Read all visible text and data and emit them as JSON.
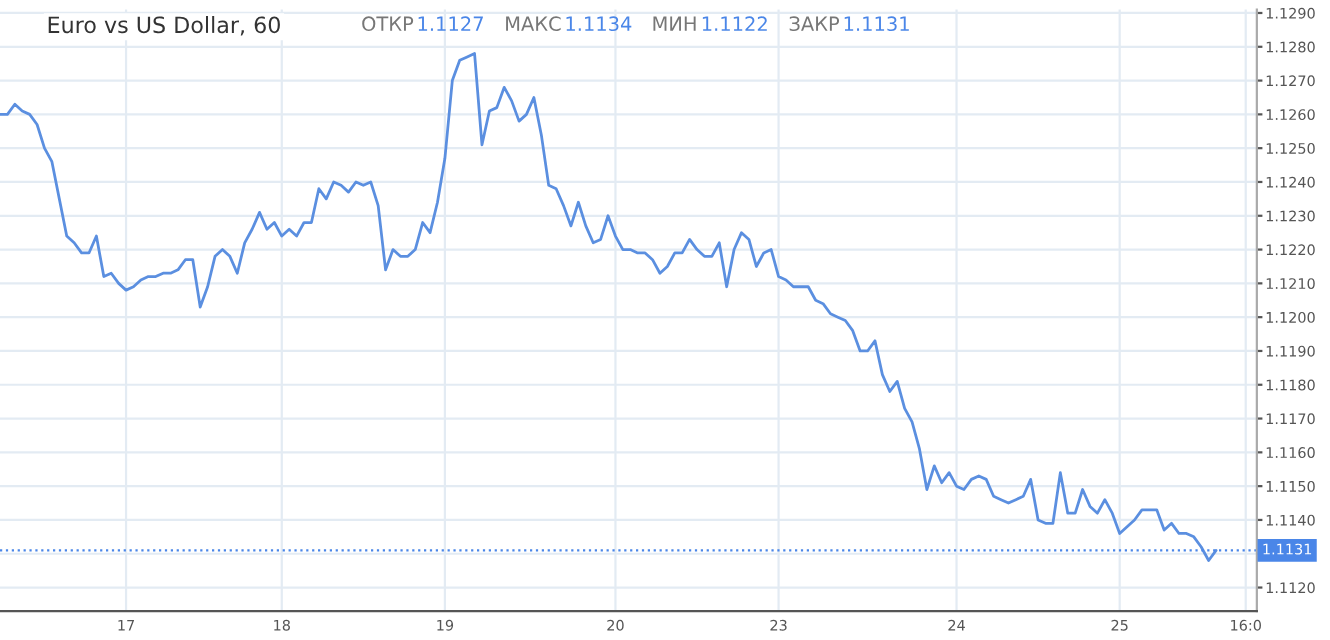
{
  "chart_data": {
    "type": "line",
    "title": "Euro vs US Dollar, 60",
    "annotations": [
      "ОТКР",
      "1.1127",
      "МАКС",
      "1.1134",
      "МИН",
      "1.1122",
      "ЗАКР",
      "1.1131"
    ],
    "categories": [
      null,
      null,
      null,
      null,
      null,
      null,
      null,
      null,
      null,
      null,
      null,
      null,
      null,
      null,
      null,
      null,
      null,
      "17",
      null,
      null,
      null,
      null,
      null,
      null,
      null,
      null,
      null,
      null,
      null,
      null,
      null,
      null,
      null,
      null,
      null,
      null,
      null,
      null,
      "18",
      null,
      null,
      null,
      null,
      null,
      null,
      null,
      null,
      null,
      null,
      null,
      null,
      null,
      null,
      null,
      null,
      null,
      null,
      null,
      null,
      null,
      "19",
      null,
      null,
      null,
      null,
      null,
      null,
      null,
      null,
      null,
      null,
      null,
      null,
      null,
      null,
      null,
      null,
      null,
      null,
      null,
      null,
      null,
      null,
      "20",
      null,
      null,
      null,
      null,
      null,
      null,
      null,
      null,
      null,
      null,
      null,
      null,
      null,
      null,
      null,
      null,
      null,
      null,
      null,
      null,
      null,
      "23",
      null,
      null,
      null,
      null,
      null,
      null,
      null,
      null,
      null,
      null,
      null,
      null,
      null,
      null,
      null,
      null,
      null,
      null,
      null,
      null,
      null,
      null,
      null,
      "24",
      null,
      null,
      null,
      null,
      null,
      null,
      null,
      null,
      null,
      null,
      null,
      null,
      null,
      null,
      null,
      null,
      null,
      null,
      null,
      null,
      null,
      "25",
      null,
      null,
      null,
      null,
      null,
      null,
      null,
      null,
      null,
      null,
      null,
      null,
      null,
      null,
      null,
      null,
      "16:0",
      null
    ],
    "series": [
      {
        "color": "#5b8fe0",
        "values": [
          1.126,
          1.126,
          1.1263,
          1.1261,
          1.126,
          1.1257,
          1.125,
          1.1246,
          1.1235,
          1.1224,
          1.1222,
          1.1219,
          1.1219,
          1.1224,
          1.1212,
          1.1213,
          1.121,
          1.1208,
          1.1209,
          1.1211,
          1.1212,
          1.1212,
          1.1213,
          1.1213,
          1.1214,
          1.1217,
          1.1217,
          1.1203,
          1.1209,
          1.1218,
          1.122,
          1.1218,
          1.1213,
          1.1222,
          1.1226,
          1.1231,
          1.1226,
          1.1228,
          1.1224,
          1.1226,
          1.1224,
          1.1228,
          1.1228,
          1.1238,
          1.1235,
          1.124,
          1.1239,
          1.1237,
          1.124,
          1.1239,
          1.124,
          1.1233,
          1.1214,
          1.122,
          1.1218,
          1.1218,
          1.122,
          1.1228,
          1.1225,
          1.1234,
          1.1247,
          1.127,
          1.1276,
          1.1277,
          1.1278,
          1.1251,
          1.1261,
          1.1262,
          1.1268,
          1.1264,
          1.1258,
          1.126,
          1.1265,
          1.1254,
          1.1239,
          1.1238,
          1.1233,
          1.1227,
          1.1234,
          1.1227,
          1.1222,
          1.1223,
          1.123,
          1.1224,
          1.122,
          1.122,
          1.1219,
          1.1219,
          1.1217,
          1.1213,
          1.1215,
          1.1219,
          1.1219,
          1.1223,
          1.122,
          1.1218,
          1.1218,
          1.1222,
          1.1209,
          1.122,
          1.1225,
          1.1223,
          1.1215,
          1.1219,
          1.122,
          1.1212,
          1.1211,
          1.1209,
          1.1209,
          1.1209,
          1.1205,
          1.1204,
          1.1201,
          1.12,
          1.1199,
          1.1196,
          1.119,
          1.119,
          1.1193,
          1.1183,
          1.1178,
          1.1181,
          1.1173,
          1.1169,
          1.1161,
          1.1149,
          1.1156,
          1.1151,
          1.1154,
          1.115,
          1.1149,
          1.1152,
          1.1153,
          1.1152,
          1.1147,
          1.1146,
          1.1145,
          1.1146,
          1.1147,
          1.1152,
          1.114,
          1.1139,
          1.1139,
          1.1154,
          1.1142,
          1.1142,
          1.1149,
          1.1144,
          1.1142,
          1.1146,
          1.1142,
          1.1136,
          1.1138,
          1.114,
          1.1143,
          1.1143,
          1.1143,
          1.1137,
          1.1139,
          1.1136,
          1.1136,
          1.1135,
          1.1132,
          1.1128,
          1.1131,
          null,
          null,
          null,
          null,
          null
        ]
      }
    ],
    "ylim": [
      1.1113,
      1.1291
    ],
    "yticks": [
      {
        "value": 1.112,
        "label": "1.1120"
      },
      {
        "value": 1.113,
        "label": null
      },
      {
        "value": 1.114,
        "label": "1.1140"
      },
      {
        "value": 1.115,
        "label": "1.1150"
      },
      {
        "value": 1.116,
        "label": "1.1160"
      },
      {
        "value": 1.117,
        "label": "1.1170"
      },
      {
        "value": 1.118,
        "label": "1.1180"
      },
      {
        "value": 1.119,
        "label": "1.1190"
      },
      {
        "value": 1.12,
        "label": "1.1200"
      },
      {
        "value": 1.121,
        "label": "1.1210"
      },
      {
        "value": 1.122,
        "label": "1.1220"
      },
      {
        "value": 1.123,
        "label": "1.1230"
      },
      {
        "value": 1.124,
        "label": "1.1240"
      },
      {
        "value": 1.125,
        "label": "1.1250"
      },
      {
        "value": 1.126,
        "label": "1.1260"
      },
      {
        "value": 1.127,
        "label": "1.1270"
      },
      {
        "value": 1.128,
        "label": "1.1280"
      },
      {
        "value": 1.129,
        "label": "1.1290"
      }
    ],
    "ref_lines": [
      {
        "axis": "y",
        "value": 1.1131,
        "label": "1.1131",
        "color": "#4a86e8",
        "line_style": "dotted"
      }
    ],
    "grid": true,
    "legend": false,
    "marker": "none",
    "line_style": "solid"
  }
}
